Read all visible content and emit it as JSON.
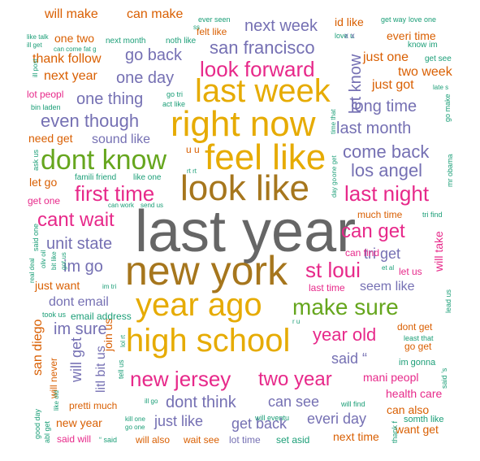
{
  "palette": {
    "gray": "#666666",
    "olive": "#a6761d",
    "gold": "#e6ab02",
    "green": "#66a61e",
    "magenta": "#e7298a",
    "purple": "#7570b3",
    "orange": "#d95f02",
    "teal": "#1b9e77"
  },
  "words": [
    {
      "text": "last year",
      "color": "gray"
    },
    {
      "text": "new york",
      "color": "olive"
    },
    {
      "text": "right now",
      "color": "gold"
    },
    {
      "text": "look like",
      "color": "olive"
    },
    {
      "text": "feel like",
      "color": "gold"
    },
    {
      "text": "last week",
      "color": "gold"
    },
    {
      "text": "year ago",
      "color": "gold"
    },
    {
      "text": "high school",
      "color": "gold"
    },
    {
      "text": "dont know",
      "color": "green"
    },
    {
      "text": "make sure",
      "color": "green"
    },
    {
      "text": "look forward",
      "color": "magenta"
    },
    {
      "text": "first time",
      "color": "magenta"
    },
    {
      "text": "last night",
      "color": "magenta"
    },
    {
      "text": "new jersey",
      "color": "magenta"
    },
    {
      "text": "cant wait",
      "color": "magenta"
    },
    {
      "text": "can get",
      "color": "magenta"
    },
    {
      "text": "st loui",
      "color": "magenta"
    },
    {
      "text": "year old",
      "color": "magenta"
    },
    {
      "text": "two year",
      "color": "magenta"
    },
    {
      "text": "even though",
      "color": "purple"
    },
    {
      "text": "san francisco",
      "color": "purple"
    },
    {
      "text": "come back",
      "color": "purple"
    },
    {
      "text": "los angel",
      "color": "purple"
    },
    {
      "text": "unit state",
      "color": "purple"
    },
    {
      "text": "one thing",
      "color": "purple"
    },
    {
      "text": "last month",
      "color": "purple"
    },
    {
      "text": "long time",
      "color": "purple"
    },
    {
      "text": "next week",
      "color": "purple"
    },
    {
      "text": "one day",
      "color": "purple"
    },
    {
      "text": "go back",
      "color": "purple"
    },
    {
      "text": "let know",
      "color": "purple"
    },
    {
      "text": "im go",
      "color": "purple"
    },
    {
      "text": "im sure",
      "color": "purple"
    },
    {
      "text": "dont think",
      "color": "purple"
    },
    {
      "text": "just like",
      "color": "purple"
    },
    {
      "text": "can see",
      "color": "purple"
    },
    {
      "text": "everi day",
      "color": "purple"
    },
    {
      "text": "get back",
      "color": "purple"
    },
    {
      "text": "seem like",
      "color": "purple"
    },
    {
      "text": "dont email",
      "color": "purple"
    },
    {
      "text": "sound like",
      "color": "purple"
    },
    {
      "text": "tri get",
      "color": "purple"
    },
    {
      "text": "said “",
      "color": "purple"
    },
    {
      "text": "will get",
      "color": "purple"
    },
    {
      "text": "litl bit us",
      "color": "purple"
    },
    {
      "text": "will make",
      "color": "orange"
    },
    {
      "text": "can make",
      "color": "orange"
    },
    {
      "text": "thank follow",
      "color": "orange"
    },
    {
      "text": "next year",
      "color": "orange"
    },
    {
      "text": "id like",
      "color": "orange"
    },
    {
      "text": "everi time",
      "color": "orange"
    },
    {
      "text": "just one",
      "color": "orange"
    },
    {
      "text": "just got",
      "color": "orange"
    },
    {
      "text": "two week",
      "color": "orange"
    },
    {
      "text": "need get",
      "color": "orange"
    },
    {
      "text": "let go",
      "color": "orange"
    },
    {
      "text": "san diego",
      "color": "orange"
    },
    {
      "text": "join us",
      "color": "orange"
    },
    {
      "text": "just want",
      "color": "orange"
    },
    {
      "text": "next time",
      "color": "orange"
    },
    {
      "text": "can also",
      "color": "orange"
    },
    {
      "text": "want get",
      "color": "orange"
    },
    {
      "text": "will also",
      "color": "orange"
    },
    {
      "text": "new year",
      "color": "orange"
    },
    {
      "text": "pretti much",
      "color": "orange"
    },
    {
      "text": "felt like",
      "color": "orange"
    },
    {
      "text": "one two",
      "color": "orange"
    },
    {
      "text": "will take",
      "color": "magenta"
    },
    {
      "text": "health care",
      "color": "magenta"
    },
    {
      "text": "mani peopl",
      "color": "magenta"
    },
    {
      "text": "dont get",
      "color": "orange"
    },
    {
      "text": "go get",
      "color": "orange"
    },
    {
      "text": "will never",
      "color": "orange"
    },
    {
      "text": "much time",
      "color": "orange"
    },
    {
      "text": "last time",
      "color": "magenta"
    },
    {
      "text": "can find",
      "color": "magenta"
    },
    {
      "text": "let us",
      "color": "magenta"
    },
    {
      "text": "said will",
      "color": "magenta"
    },
    {
      "text": "wait see",
      "color": "orange"
    },
    {
      "text": "lot time",
      "color": "purple"
    },
    {
      "text": "set asid",
      "color": "teal"
    },
    {
      "text": "get one",
      "color": "magenta"
    },
    {
      "text": "lot peopl",
      "color": "magenta"
    },
    {
      "text": "im gonna",
      "color": "teal"
    },
    {
      "text": "somth like",
      "color": "teal"
    },
    {
      "text": "bin laden",
      "color": "teal"
    },
    {
      "text": "famili friend",
      "color": "teal"
    },
    {
      "text": "like one",
      "color": "teal"
    },
    {
      "text": "next month",
      "color": "teal"
    },
    {
      "text": "noth like",
      "color": "teal"
    },
    {
      "text": "ever seen",
      "color": "teal"
    },
    {
      "text": "get way",
      "color": "teal"
    },
    {
      "text": "love one",
      "color": "teal"
    },
    {
      "text": "love u",
      "color": "teal"
    },
    {
      "text": "know im",
      "color": "teal"
    },
    {
      "text": "get see",
      "color": "teal"
    },
    {
      "text": "like talk",
      "color": "teal"
    },
    {
      "text": "ill get",
      "color": "teal"
    },
    {
      "text": "can come",
      "color": "teal"
    },
    {
      "text": "fat g",
      "color": "teal"
    },
    {
      "text": "act like",
      "color": "teal"
    },
    {
      "text": "go tri",
      "color": "teal"
    },
    {
      "text": "can work",
      "color": "teal"
    },
    {
      "text": "send us",
      "color": "teal"
    },
    {
      "text": "email address",
      "color": "teal"
    },
    {
      "text": "took us",
      "color": "teal"
    },
    {
      "text": "least that",
      "color": "teal"
    },
    {
      "text": "will eventu",
      "color": "teal"
    },
    {
      "text": "will find",
      "color": "teal"
    },
    {
      "text": "kill one",
      "color": "teal"
    },
    {
      "text": "go one",
      "color": "teal"
    },
    {
      "text": "real deal",
      "color": "teal"
    },
    {
      "text": "said one",
      "color": "teal"
    },
    {
      "text": "oliv oil",
      "color": "teal"
    },
    {
      "text": "ill go",
      "color": "teal"
    },
    {
      "text": "tri find",
      "color": "teal"
    },
    {
      "text": "lead us",
      "color": "teal"
    },
    {
      "text": "mr obama",
      "color": "teal"
    },
    {
      "text": "go make",
      "color": "teal"
    },
    {
      "text": "late s",
      "color": "teal"
    },
    {
      "text": "thank f",
      "color": "teal"
    },
    {
      "text": "said ’s",
      "color": "teal"
    },
    {
      "text": "good day",
      "color": "teal"
    },
    {
      "text": "ask us",
      "color": "teal"
    },
    {
      "text": "abl get",
      "color": "teal"
    },
    {
      "text": "like old",
      "color": "teal"
    },
    {
      "text": "tell us",
      "color": "teal"
    },
    {
      "text": "lol rt",
      "color": "teal"
    },
    {
      "text": "im tri",
      "color": "teal"
    },
    {
      "text": "et al",
      "color": "teal"
    },
    {
      "text": "one get",
      "color": "teal"
    },
    {
      "text": "day go",
      "color": "teal"
    },
    {
      "text": "time that",
      "color": "teal"
    },
    {
      "text": "ill post",
      "color": "teal"
    },
    {
      "text": "bit like",
      "color": "teal"
    },
    {
      "text": "got us",
      "color": "teal"
    },
    {
      "text": "u u",
      "color": "orange"
    },
    {
      "text": "x x",
      "color": "purple"
    },
    {
      "text": "r u",
      "color": "teal"
    },
    {
      "text": "rt rt",
      "color": "teal"
    },
    {
      "text": "ss",
      "color": "teal"
    },
    {
      "text": "“ said",
      "color": "teal"
    }
  ]
}
